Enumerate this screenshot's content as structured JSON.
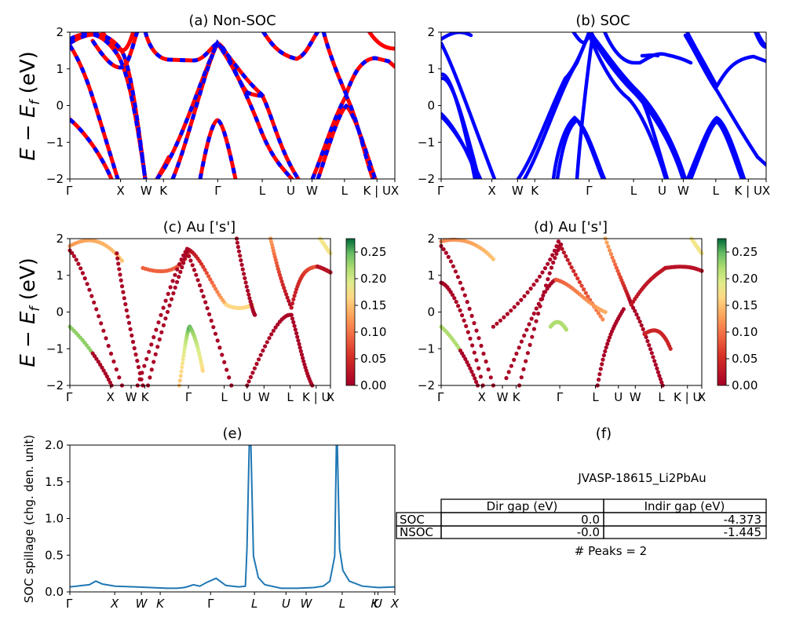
{
  "chart_data": [
    {
      "id": "a",
      "type": "line",
      "title": "(a) Non-SOC",
      "ylabel_main": "E",
      "ylabel_sub": "f",
      "ylabel_rest": " (eV)",
      "ylim": [
        -2,
        2
      ],
      "yticks": [
        "2",
        "1",
        "0",
        "−1",
        "−2"
      ],
      "kpath": [
        "Γ",
        "X",
        "W",
        "K",
        "Γ",
        "L",
        "U",
        "W",
        "L",
        "K | U",
        "X"
      ],
      "series": [
        {
          "color": "#0000ff",
          "style": "solid",
          "x": [
            0,
            0.1,
            0.35,
            0.6,
            0.8,
            1.1,
            1.3,
            1.5
          ],
          "y": [
            2.2,
            1.9,
            1.7,
            1.5,
            1.3,
            0.9,
            0.5,
            0.1
          ]
        },
        {
          "color": "#0000ff",
          "style": "solid",
          "x": [
            0,
            0.2,
            0.45,
            0.7,
            1.0
          ],
          "y": [
            1.75,
            2.0,
            1.85,
            1.55,
            1.2
          ]
        },
        {
          "color": "#0000ff",
          "style": "solid",
          "x": [
            0,
            0.4,
            1.0,
            1.6,
            2.0,
            2.4,
            2.8
          ],
          "y": [
            -0.35,
            -0.6,
            -0.9,
            -1.3,
            -1.6,
            -1.9,
            -2.1
          ]
        },
        {
          "color": "#0000ff",
          "style": "solid",
          "x": [
            0,
            0.3,
            0.6,
            0.9,
            1.2,
            1.6
          ],
          "y": [
            1.75,
            1.2,
            0.9,
            0.5,
            0.2,
            -0.1
          ]
        },
        {
          "color": "#0000ff",
          "style": "solid",
          "x": [
            4.0,
            4.3,
            4.7,
            5.0,
            5.3
          ],
          "y": [
            2.1,
            1.8,
            1.55,
            1.7,
            2.05
          ]
        },
        {
          "color": "#0000ff",
          "style": "solid",
          "x": [
            5.2,
            5.6,
            6.3,
            7.2
          ],
          "y": [
            2.0,
            1.5,
            1.25,
            1.2
          ]
        }
      ]
    },
    {
      "id": "b",
      "type": "line",
      "title": "(b) SOC",
      "ylim": [
        -2,
        2
      ],
      "yticks": [
        "2",
        "1",
        "0",
        "−1",
        "−2"
      ],
      "kpath": [
        "Γ",
        "X",
        "W",
        "K",
        "Γ",
        "L",
        "U",
        "W",
        "L",
        "K | U",
        "X"
      ]
    },
    {
      "id": "c",
      "type": "scatter",
      "title": "(c)  Au ['s']",
      "ylabel_main": "E",
      "ylabel_sub": "f",
      "ylabel_rest": " (eV)",
      "ylim": [
        -2,
        2
      ],
      "yticks": [
        "2",
        "1",
        "0",
        "−1",
        "−2"
      ],
      "kpath": [
        "Γ",
        "X",
        "W",
        "K",
        "Γ",
        "L",
        "U",
        "W",
        "L",
        "K | U",
        "X"
      ],
      "colorbar": {
        "ticks": [
          "0.25",
          "0.20",
          "0.15",
          "0.10",
          "0.05",
          "0.00"
        ],
        "vmin": 0.0,
        "vmax": 0.275
      }
    },
    {
      "id": "d",
      "type": "scatter",
      "title": "(d) Au ['s']",
      "ylim": [
        -2,
        2
      ],
      "yticks": [
        "2",
        "1",
        "0",
        "−1",
        "−2"
      ],
      "kpath": [
        "Γ",
        "X",
        "W",
        "K",
        "Γ",
        "L",
        "U",
        "W",
        "L",
        "K | U",
        "X"
      ],
      "colorbar": {
        "ticks": [
          "0.25",
          "0.20",
          "0.15",
          "0.10",
          "0.05",
          "0.00"
        ],
        "vmin": 0.0,
        "vmax": 0.275
      }
    },
    {
      "id": "e",
      "type": "line",
      "title": "(e)",
      "ylabel": "SOC spillage (chg. den. unit)",
      "ylim": [
        0,
        2.05
      ],
      "yticks": [
        "2.0",
        "1.5",
        "1.0",
        "0.5",
        "0.0"
      ],
      "kpath": [
        "Γ",
        "X",
        "W",
        "K",
        "Γ",
        "L",
        "U",
        "W",
        "L",
        "K",
        "U",
        "X"
      ],
      "series": [
        {
          "color": "#1f77b4",
          "x": [
            0,
            0.02,
            0.04,
            0.06,
            0.08,
            0.1,
            0.14,
            0.2,
            0.25,
            0.3,
            0.33,
            0.35,
            0.36,
            0.38,
            0.4,
            0.42,
            0.45,
            0.48,
            0.5,
            0.52,
            0.54,
            0.545,
            0.552,
            0.557,
            0.565,
            0.58,
            0.6,
            0.65,
            0.7,
            0.75,
            0.78,
            0.8,
            0.8,
            0.815,
            0.82,
            0.823,
            0.83,
            0.84,
            0.86,
            0.9,
            0.95,
            1.0
          ],
          "y": [
            0.07,
            0.08,
            0.09,
            0.1,
            0.15,
            0.11,
            0.08,
            0.07,
            0.06,
            0.05,
            0.05,
            0.06,
            0.07,
            0.1,
            0.08,
            0.13,
            0.19,
            0.09,
            0.08,
            0.07,
            0.08,
            0.6,
            2.05,
            2.05,
            0.5,
            0.2,
            0.1,
            0.05,
            0.05,
            0.06,
            0.08,
            0.15,
            0.15,
            0.5,
            2.05,
            2.05,
            0.6,
            0.3,
            0.15,
            0.08,
            0.06,
            0.07
          ]
        }
      ]
    },
    {
      "id": "f",
      "type": "table",
      "title": "(f)",
      "material": "JVASP-18615_Li2PbAu",
      "columns": [
        "Dir gap (eV)",
        "Indir gap (eV)"
      ],
      "rows": [
        {
          "label": "SOC",
          "values": [
            "0.0",
            "-4.373"
          ]
        },
        {
          "label": "NSOC",
          "values": [
            "-0.0",
            "-1.445"
          ]
        }
      ],
      "footer": "# Peaks = 2"
    }
  ]
}
